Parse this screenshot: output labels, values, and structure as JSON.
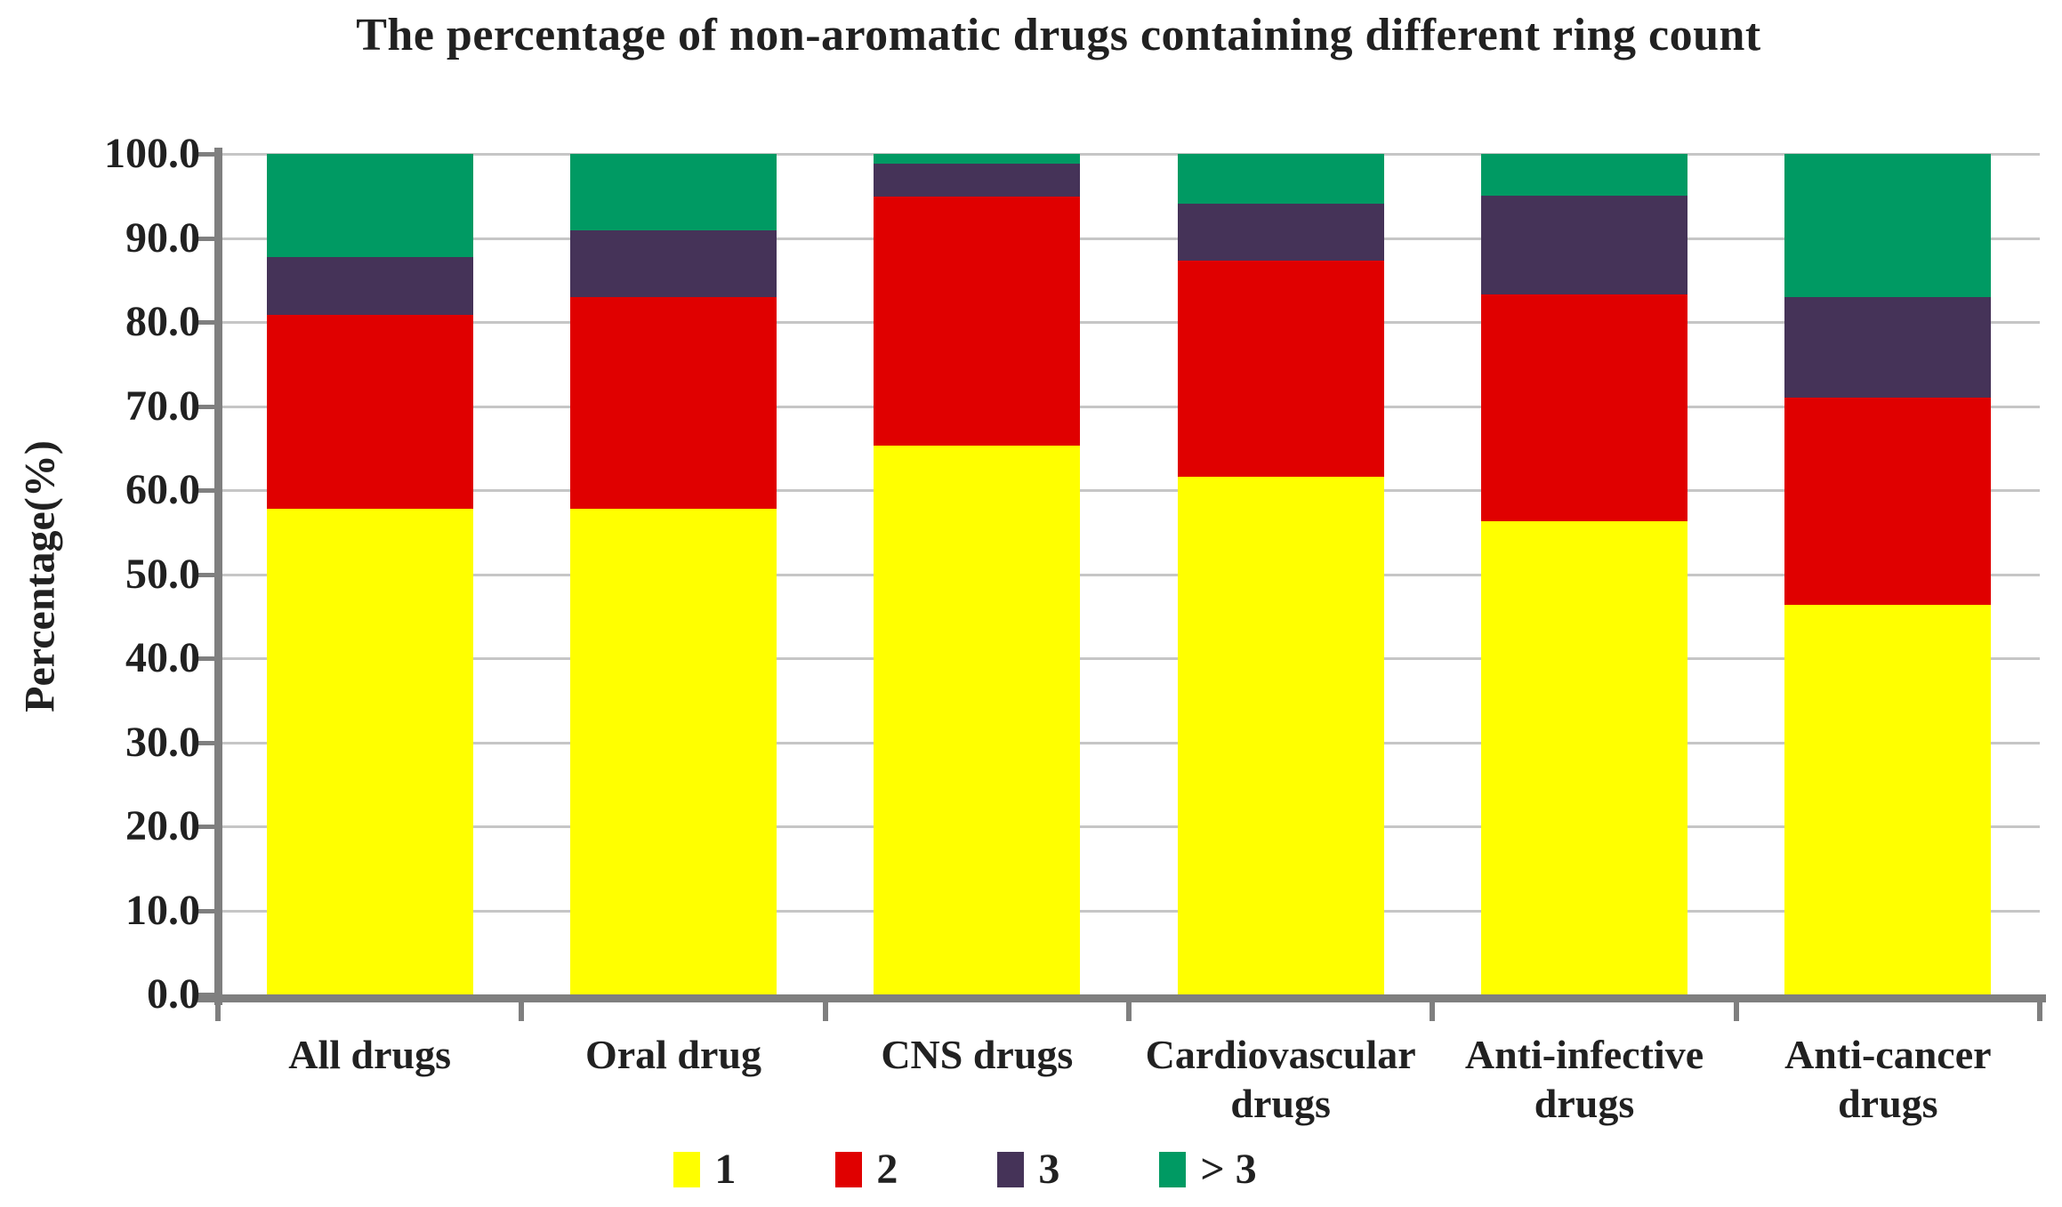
{
  "chart_data": {
    "type": "bar",
    "stacked": true,
    "title": "The percentage of non-aromatic drugs containing different ring count",
    "xlabel": "",
    "ylabel": "Percentage(%)",
    "ylim": [
      0,
      100
    ],
    "grid": true,
    "legend_position": "bottom",
    "yticks": [
      0,
      10,
      20,
      30,
      40,
      50,
      60,
      70,
      80,
      90,
      100
    ],
    "ytick_labels": [
      "0.0",
      "10.0",
      "20.0",
      "30.0",
      "40.0",
      "50.0",
      "60.0",
      "70.0",
      "80.0",
      "90.0",
      "100.0"
    ],
    "categories": [
      "All drugs",
      "Oral drug",
      "CNS drugs",
      "Cardiovascular drugs",
      "Anti-infective drugs",
      "Anti-cancer drugs"
    ],
    "category_label_lines": [
      [
        "All drugs"
      ],
      [
        "Oral drug"
      ],
      [
        "CNS drugs"
      ],
      [
        "Cardiovascular",
        "drugs"
      ],
      [
        "Anti-infective",
        "drugs"
      ],
      [
        "Anti-cancer",
        "drugs"
      ]
    ],
    "series": [
      {
        "name": "1",
        "color": "#FFFF00",
        "values": [
          57.8,
          57.8,
          65.3,
          61.6,
          56.3,
          46.3
        ]
      },
      {
        "name": "2",
        "color": "#E00000",
        "values": [
          23.1,
          25.2,
          29.6,
          25.7,
          27.0,
          24.7
        ]
      },
      {
        "name": "3",
        "color": "#453358",
        "values": [
          6.8,
          7.9,
          3.9,
          6.8,
          11.7,
          12.0
        ]
      },
      {
        "name": "> 3",
        "color": "#009A63",
        "values": [
          12.3,
          9.1,
          1.2,
          5.9,
          5.0,
          17.0
        ]
      }
    ]
  },
  "colors": {
    "axis": "#7f7f7f",
    "gridline": "#c6c6c6",
    "text": "#212121",
    "background": "#ffffff"
  }
}
